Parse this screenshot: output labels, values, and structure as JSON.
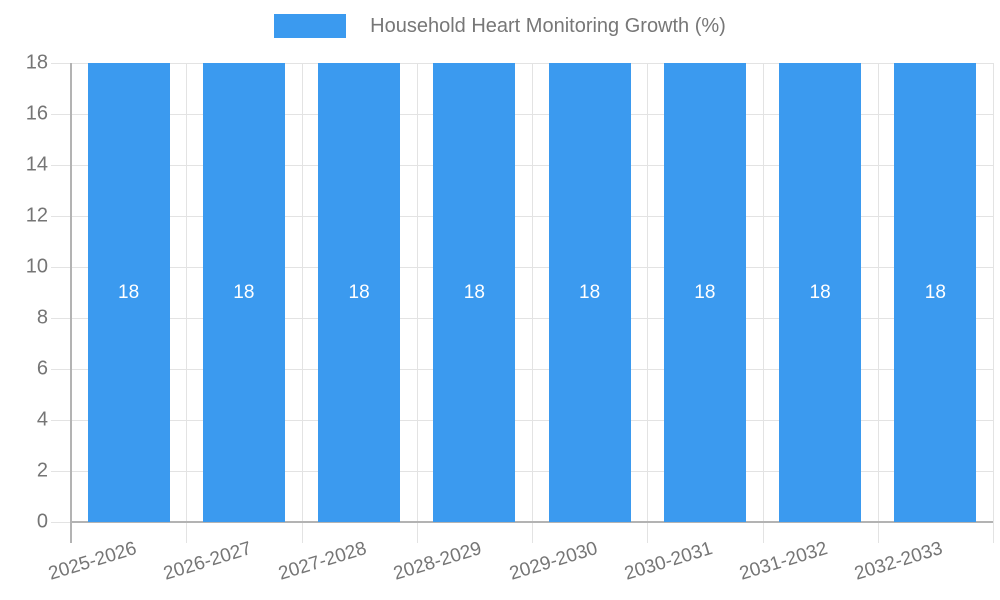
{
  "legend": {
    "label": "Household Heart Monitoring Growth (%)"
  },
  "chart_data": {
    "type": "bar",
    "title": "Household Heart Monitoring Growth (%)",
    "categories": [
      "2025-2026",
      "2026-2027",
      "2027-2028",
      "2028-2029",
      "2029-2030",
      "2030-2031",
      "2031-2032",
      "2032-2033"
    ],
    "values": [
      18,
      18,
      18,
      18,
      18,
      18,
      18,
      18
    ],
    "data_labels": [
      "18",
      "18",
      "18",
      "18",
      "18",
      "18",
      "18",
      "18"
    ],
    "xlabel": "",
    "ylabel": "",
    "ylim": [
      0,
      18
    ],
    "yticks": [
      0,
      2,
      4,
      6,
      8,
      10,
      12,
      14,
      16,
      18
    ],
    "grid": true,
    "legend_position": "top",
    "colors": {
      "bar": "#3b9aef",
      "bar_label": "#ffffff",
      "grid": "#e3e3e3",
      "axis": "#b3b3b3",
      "tick_text": "#757575",
      "legend_text": "#777777"
    }
  }
}
